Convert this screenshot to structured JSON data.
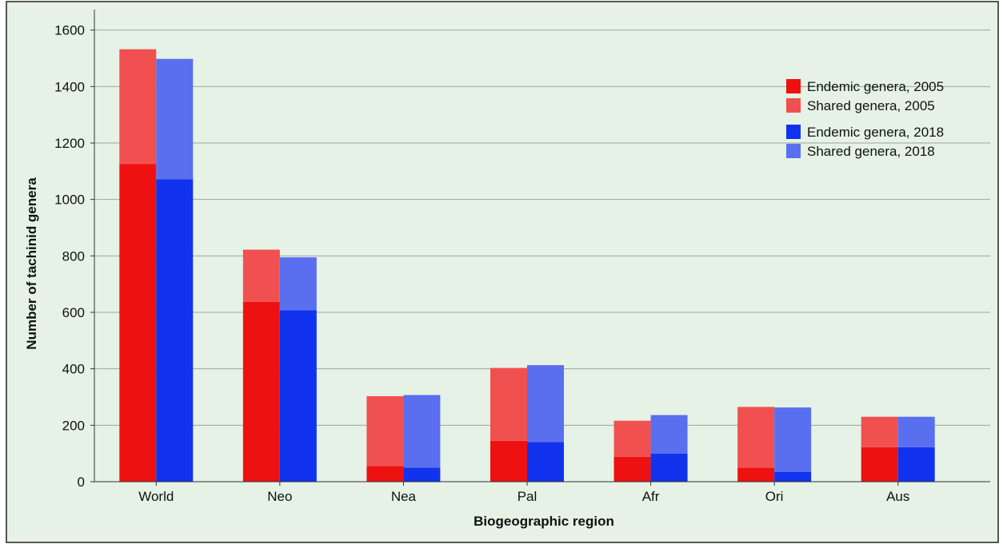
{
  "chart_data": {
    "type": "bar",
    "stacked": true,
    "grouped": true,
    "xlabel": "Biogeographic region",
    "ylabel": "Number of tachinid genera",
    "ylim": [
      0,
      1650
    ],
    "yticks": [
      0,
      200,
      400,
      600,
      800,
      1000,
      1200,
      1400,
      1600
    ],
    "categories": [
      "World",
      "Neo",
      "Nea",
      "Pal",
      "Afr",
      "Ori",
      "Aus"
    ],
    "grid": true,
    "legend_position": "top-right",
    "background_color": "#e5f2e5",
    "series": [
      {
        "name": "Endemic genera, 2005",
        "group": "2005",
        "color": "#ee1111",
        "values": [
          1125,
          637,
          55,
          145,
          88,
          50,
          122
        ]
      },
      {
        "name": "Shared genera, 2005",
        "group": "2005",
        "color": "#f05050",
        "values": [
          407,
          185,
          248,
          258,
          128,
          215,
          108
        ]
      },
      {
        "name": "Endemic genera, 2018",
        "group": "2018",
        "color": "#1133ee",
        "values": [
          1072,
          607,
          50,
          140,
          100,
          35,
          122
        ]
      },
      {
        "name": "Shared genera, 2018",
        "group": "2018",
        "color": "#5a6ff0",
        "values": [
          426,
          188,
          257,
          273,
          136,
          228,
          108
        ]
      }
    ]
  }
}
